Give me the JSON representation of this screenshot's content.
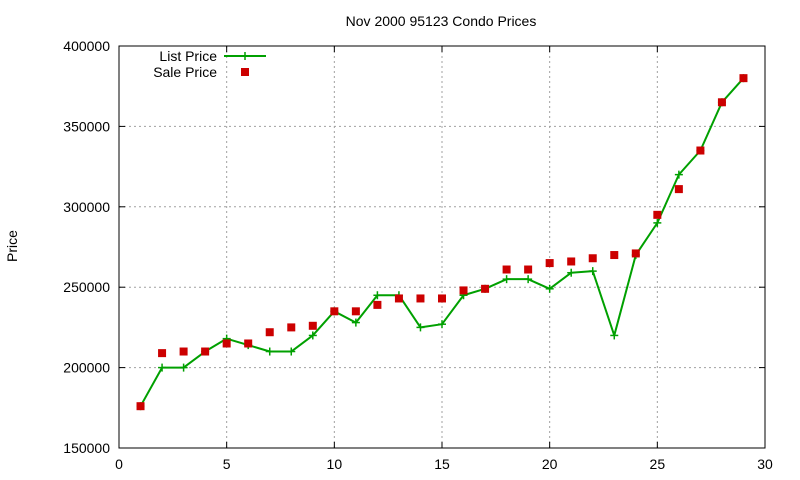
{
  "chart_data": {
    "type": "line",
    "title": "Nov 2000 95123 Condo Prices",
    "xlabel": "",
    "ylabel": "Price",
    "xlim": [
      0,
      30
    ],
    "ylim": [
      150000,
      400000
    ],
    "xticks": [
      0,
      5,
      10,
      15,
      20,
      25,
      30
    ],
    "yticks": [
      150000,
      200000,
      250000,
      300000,
      350000,
      400000
    ],
    "grid": true,
    "legend_position": "top-left",
    "series": [
      {
        "name": "List Price",
        "style": "line+cross",
        "color": "#00a000",
        "x": [
          1,
          2,
          3,
          4,
          5,
          6,
          7,
          8,
          9,
          10,
          11,
          12,
          13,
          14,
          15,
          16,
          17,
          18,
          19,
          20,
          21,
          22,
          23,
          24,
          25,
          26,
          27,
          28,
          29
        ],
        "y": [
          176000,
          200000,
          200000,
          210000,
          218000,
          214000,
          210000,
          210000,
          220000,
          235000,
          228000,
          245000,
          245000,
          225000,
          227000,
          245000,
          249000,
          255000,
          255000,
          249000,
          259000,
          260000,
          220000,
          270000,
          290000,
          320000,
          335000,
          365000,
          380000
        ]
      },
      {
        "name": "Sale Price",
        "style": "square",
        "color": "#cc0000",
        "x": [
          1,
          2,
          3,
          4,
          5,
          6,
          7,
          8,
          9,
          10,
          11,
          12,
          13,
          14,
          15,
          16,
          17,
          18,
          19,
          20,
          21,
          22,
          23,
          24,
          25,
          26,
          27,
          28,
          29
        ],
        "y": [
          176000,
          209000,
          210000,
          210000,
          215000,
          215000,
          222000,
          225000,
          226000,
          235000,
          235000,
          239000,
          243000,
          243000,
          243000,
          248000,
          249000,
          261000,
          261000,
          265000,
          266000,
          268000,
          270000,
          271000,
          295000,
          311000,
          335000,
          365000,
          380000
        ]
      }
    ]
  }
}
